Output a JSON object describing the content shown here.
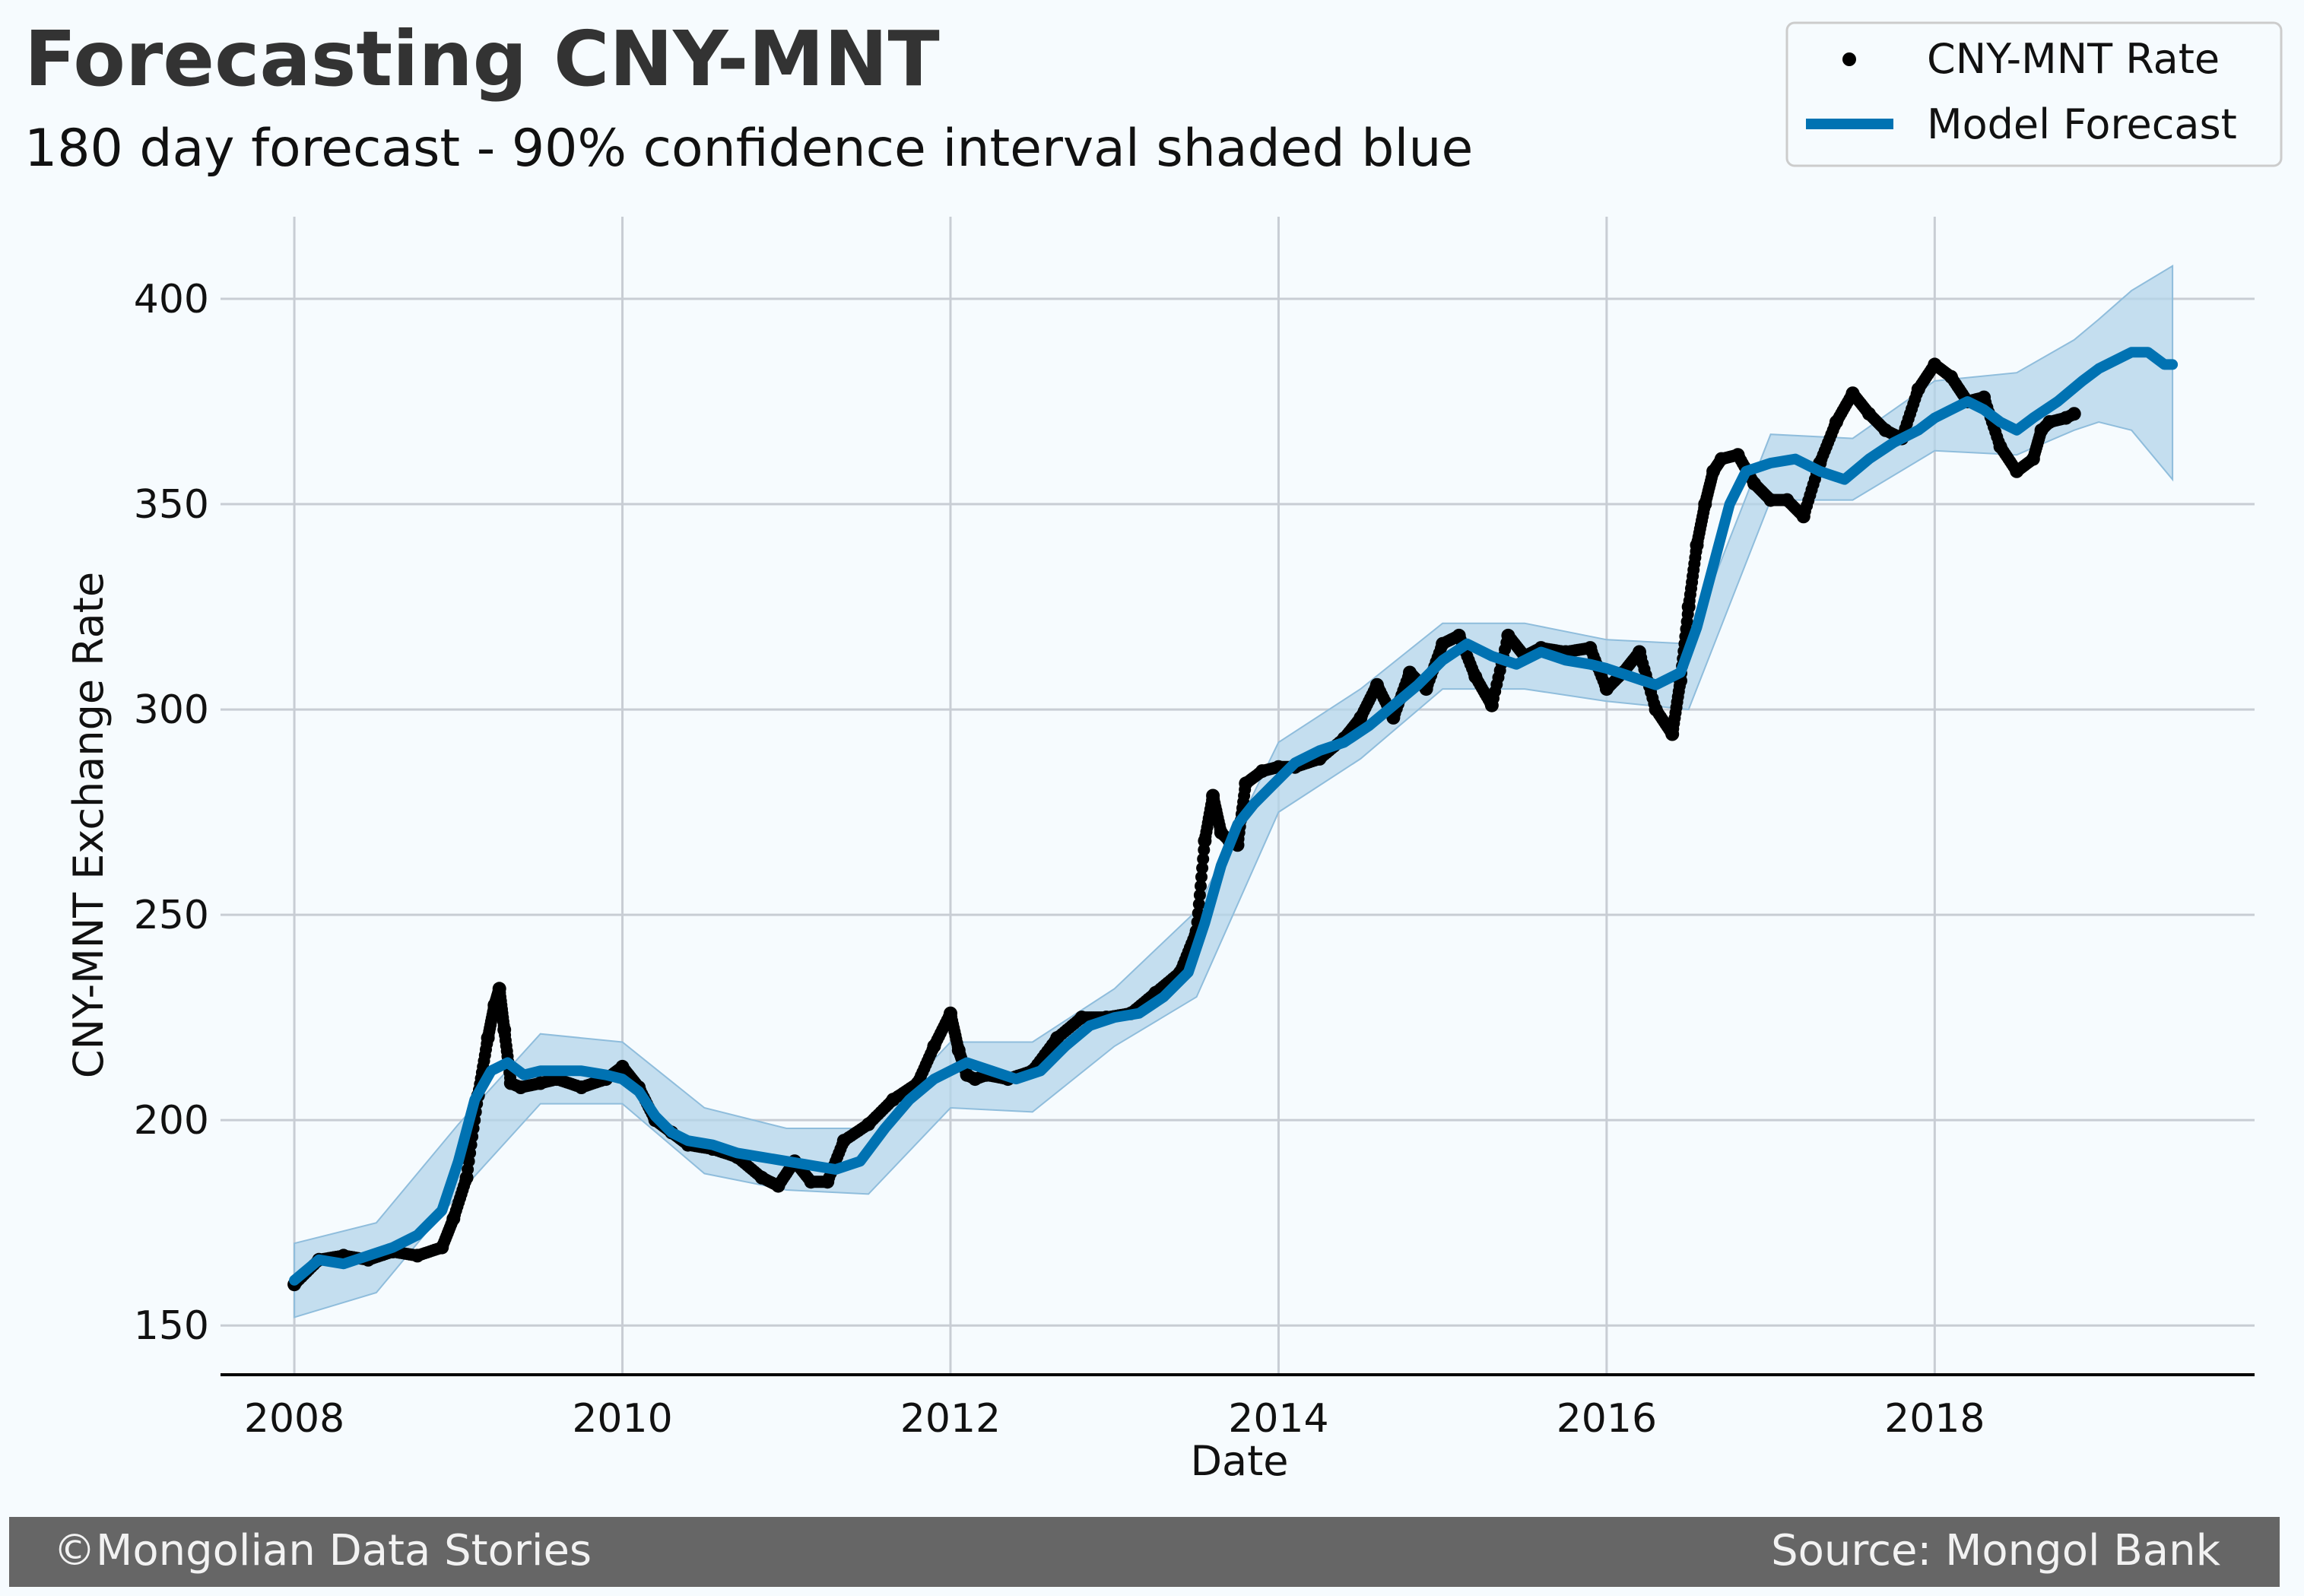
{
  "header": {
    "title": "Forecasting CNY-MNT",
    "subtitle": "180 day forecast - 90% confidence interval shaded blue"
  },
  "legend": {
    "placement": "top-right",
    "items": [
      {
        "label": "CNY-MNT Rate",
        "marker": "dot",
        "color": "#000000"
      },
      {
        "label": "Model Forecast",
        "marker": "line",
        "color": "#0072b2"
      }
    ]
  },
  "footer": {
    "left": "©Mongolian Data Stories",
    "right": "Source: Mongol Bank",
    "background": "#666666"
  },
  "colors": {
    "background": "#f6fbfe",
    "forecast": "#0072b2",
    "interval": "#b3d4ea",
    "observed": "#000000",
    "grid": "#c8cdd4"
  },
  "chart_data": {
    "type": "line",
    "xlabel": "Date",
    "ylabel": "CNY-MNT Exchange Rate",
    "xlim": [
      2007.55,
      2019.95
    ],
    "ylim": [
      138,
      420
    ],
    "x_ticks": [
      2008,
      2010,
      2012,
      2014,
      2016,
      2018
    ],
    "y_ticks": [
      150,
      200,
      250,
      300,
      350,
      400
    ],
    "grid": true,
    "interval": "90%",
    "forecast_horizon_days": 180,
    "series": [
      {
        "name": "CNY-MNT Rate",
        "style": "scatter",
        "x": [
          2008.0,
          2008.15,
          2008.3,
          2008.45,
          2008.6,
          2008.75,
          2008.9,
          2008.97,
          2009.05,
          2009.12,
          2009.18,
          2009.22,
          2009.25,
          2009.28,
          2009.32,
          2009.38,
          2009.5,
          2009.6,
          2009.75,
          2009.9,
          2010.0,
          2010.1,
          2010.2,
          2010.3,
          2010.4,
          2010.55,
          2010.7,
          2010.85,
          2010.95,
          2011.05,
          2011.15,
          2011.25,
          2011.35,
          2011.5,
          2011.65,
          2011.8,
          2011.9,
          2012.0,
          2012.05,
          2012.1,
          2012.15,
          2012.22,
          2012.35,
          2012.5,
          2012.65,
          2012.8,
          2012.95,
          2013.1,
          2013.25,
          2013.4,
          2013.5,
          2013.55,
          2013.6,
          2013.65,
          2013.7,
          2013.75,
          2013.8,
          2013.9,
          2014.0,
          2014.1,
          2014.25,
          2014.4,
          2014.5,
          2014.6,
          2014.7,
          2014.8,
          2014.9,
          2015.0,
          2015.1,
          2015.2,
          2015.3,
          2015.4,
          2015.5,
          2015.6,
          2015.75,
          2015.9,
          2016.0,
          2016.1,
          2016.2,
          2016.3,
          2016.4,
          2016.45,
          2016.5,
          2016.55,
          2016.6,
          2016.65,
          2016.7,
          2016.8,
          2016.9,
          2017.0,
          2017.1,
          2017.2,
          2017.3,
          2017.4,
          2017.5,
          2017.6,
          2017.7,
          2017.8,
          2017.9,
          2018.0,
          2018.1,
          2018.2,
          2018.3,
          2018.4,
          2018.5,
          2018.6,
          2018.65,
          2018.7,
          2018.8,
          2018.85
        ],
        "y": [
          160,
          166,
          167,
          166,
          168,
          167,
          169,
          176,
          186,
          206,
          220,
          228,
          232,
          222,
          209,
          208,
          209,
          210,
          208,
          210,
          213,
          208,
          200,
          197,
          194,
          193,
          191,
          186,
          184,
          190,
          185,
          185,
          195,
          199,
          205,
          209,
          218,
          226,
          217,
          211,
          210,
          211,
          210,
          212,
          220,
          225,
          225,
          226,
          231,
          236,
          246,
          268,
          279,
          270,
          268,
          267,
          282,
          285,
          286,
          286,
          288,
          293,
          298,
          306,
          298,
          309,
          305,
          316,
          318,
          308,
          301,
          318,
          313,
          315,
          314,
          315,
          305,
          309,
          314,
          300,
          294,
          307,
          325,
          340,
          350,
          358,
          361,
          362,
          355,
          351,
          351,
          347,
          360,
          370,
          377,
          372,
          368,
          366,
          378,
          384,
          381,
          375,
          376,
          364,
          358,
          361,
          368,
          370,
          371,
          372
        ]
      },
      {
        "name": "Model Forecast",
        "style": "line",
        "x": [
          2008.0,
          2008.15,
          2008.3,
          2008.45,
          2008.6,
          2008.75,
          2008.9,
          2009.0,
          2009.1,
          2009.2,
          2009.3,
          2009.4,
          2009.5,
          2009.6,
          2009.75,
          2009.9,
          2010.0,
          2010.1,
          2010.2,
          2010.3,
          2010.4,
          2010.55,
          2010.7,
          2010.85,
          2011.0,
          2011.15,
          2011.3,
          2011.45,
          2011.6,
          2011.75,
          2011.9,
          2012.0,
          2012.1,
          2012.25,
          2012.4,
          2012.55,
          2012.7,
          2012.85,
          2013.0,
          2013.15,
          2013.3,
          2013.45,
          2013.55,
          2013.65,
          2013.75,
          2013.85,
          2013.95,
          2014.1,
          2014.25,
          2014.4,
          2014.55,
          2014.7,
          2014.85,
          2015.0,
          2015.15,
          2015.3,
          2015.45,
          2015.6,
          2015.75,
          2015.9,
          2016.0,
          2016.15,
          2016.3,
          2016.45,
          2016.55,
          2016.65,
          2016.75,
          2016.85,
          2017.0,
          2017.15,
          2017.3,
          2017.45,
          2017.6,
          2017.75,
          2017.9,
          2018.0,
          2018.1,
          2018.2,
          2018.3,
          2018.4,
          2018.5,
          2018.6,
          2018.75,
          2018.9,
          2019.0,
          2019.1,
          2019.2,
          2019.3,
          2019.4,
          2019.45
        ],
        "y": [
          161,
          166,
          165,
          167,
          169,
          172,
          178,
          190,
          205,
          212,
          214,
          211,
          212,
          212,
          212,
          211,
          210,
          207,
          201,
          197,
          195,
          194,
          192,
          191,
          190,
          189,
          188,
          190,
          198,
          205,
          210,
          212,
          214,
          212,
          210,
          212,
          218,
          223,
          225,
          226,
          230,
          236,
          248,
          262,
          272,
          277,
          281,
          287,
          290,
          292,
          296,
          301,
          306,
          312,
          316,
          313,
          311,
          314,
          312,
          311,
          310,
          308,
          306,
          309,
          320,
          335,
          350,
          358,
          360,
          361,
          358,
          356,
          361,
          365,
          368,
          371,
          373,
          375,
          373,
          370,
          368,
          371,
          375,
          380,
          383,
          385,
          387,
          387,
          384,
          384
        ]
      }
    ],
    "interval_band": {
      "name": "90% confidence interval",
      "x": [
        2008.0,
        2008.5,
        2009.0,
        2009.5,
        2010.0,
        2010.5,
        2011.0,
        2011.5,
        2012.0,
        2012.5,
        2013.0,
        2013.5,
        2014.0,
        2014.5,
        2015.0,
        2015.5,
        2016.0,
        2016.5,
        2017.0,
        2017.5,
        2018.0,
        2018.5,
        2018.85,
        2019.0,
        2019.2,
        2019.45
      ],
      "lower": [
        152,
        158,
        182,
        204,
        204,
        187,
        183,
        182,
        203,
        202,
        218,
        230,
        275,
        288,
        305,
        305,
        302,
        300,
        351,
        351,
        363,
        362,
        368,
        370,
        368,
        356
      ],
      "upper": [
        170,
        175,
        199,
        221,
        219,
        203,
        198,
        198,
        219,
        219,
        232,
        251,
        292,
        305,
        321,
        321,
        317,
        316,
        367,
        366,
        380,
        382,
        390,
        395,
        402,
        408
      ]
    }
  }
}
